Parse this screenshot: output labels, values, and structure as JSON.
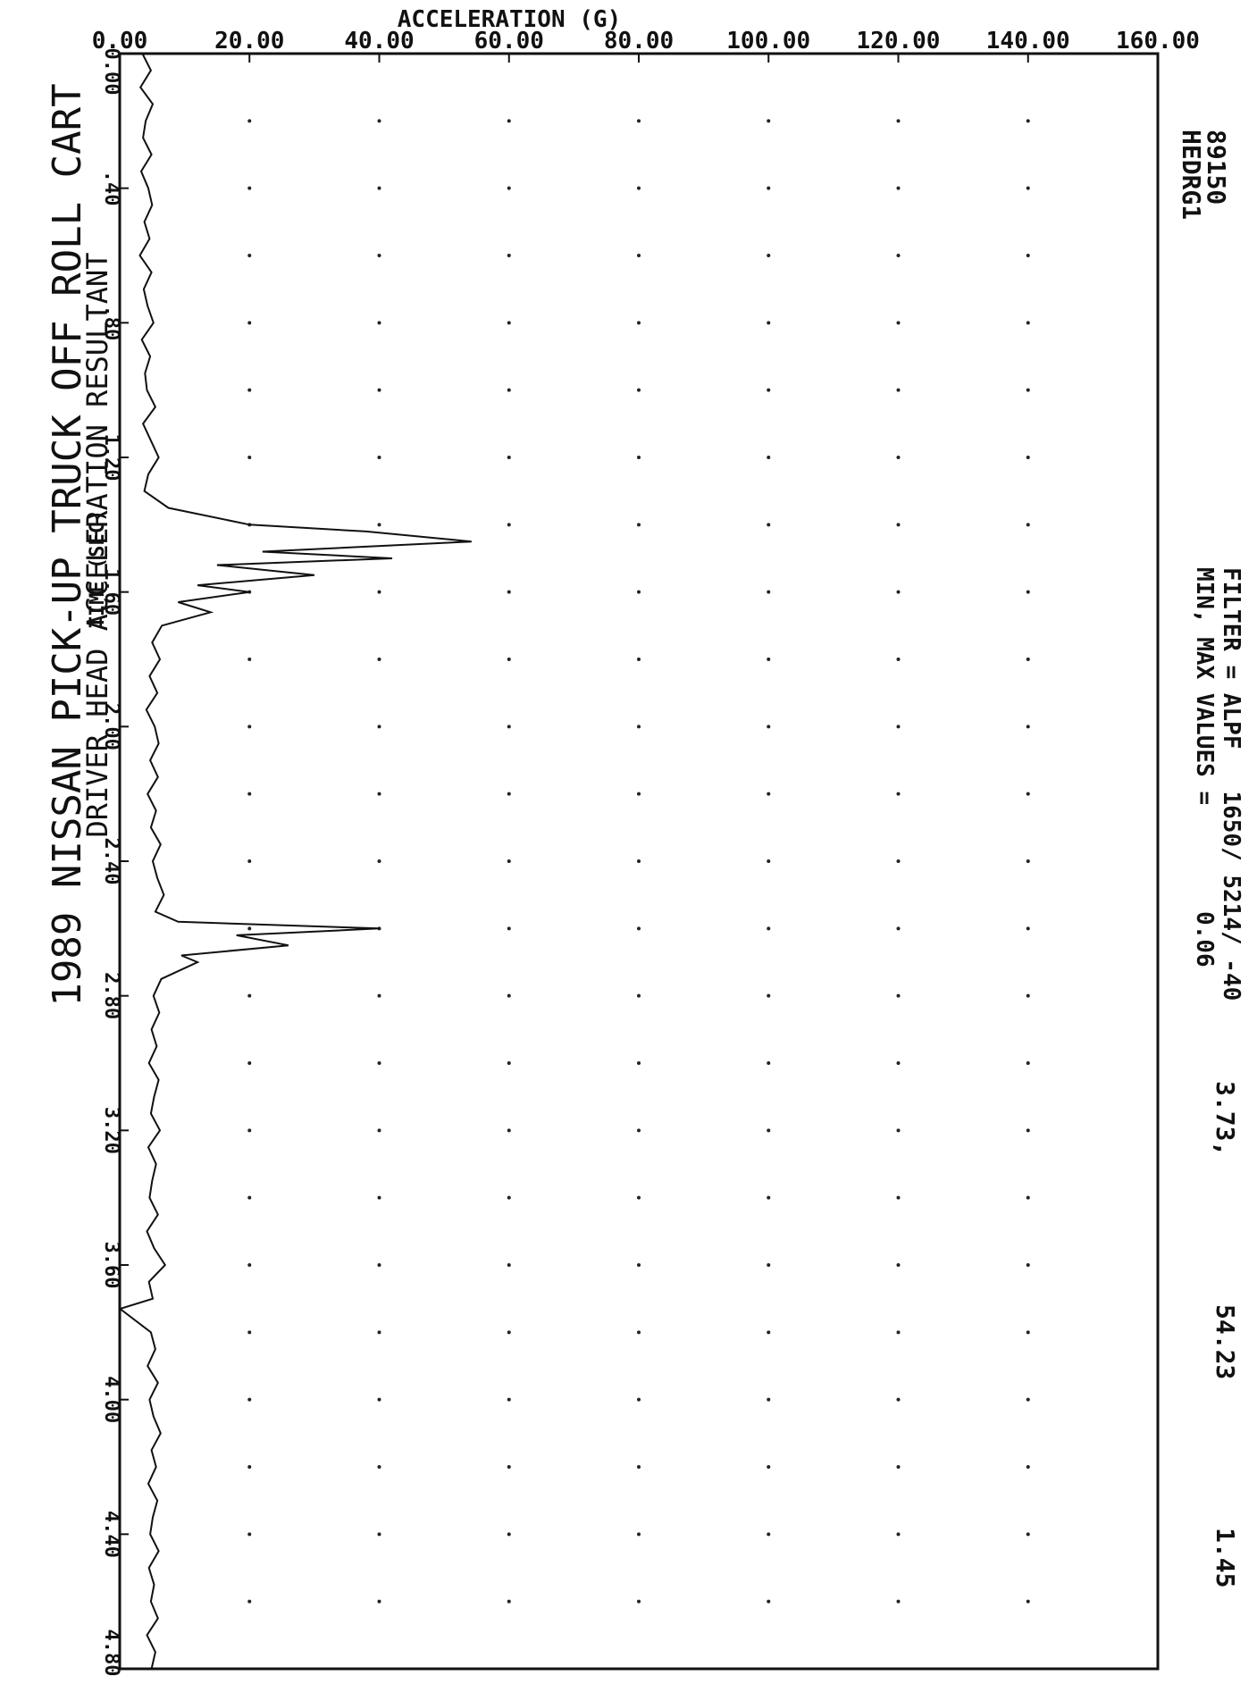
{
  "chart_data": {
    "type": "line",
    "title": "1989 NISSAN PICK-UP TRUCK OFF ROLL CART",
    "subtitle": "DRIVER HEAD ACCELERATION RESULTANT",
    "xlabel": "TIME (SEC)",
    "ylabel": "ACCELERATION (G)",
    "xlim": [
      0.0,
      4.8
    ],
    "ylim": [
      0.0,
      160.0
    ],
    "x_ticks": [
      "0.00",
      ".40",
      ".80",
      "1.20",
      "1.60",
      "2.00",
      "2.40",
      "2.80",
      "3.20",
      "3.60",
      "4.00",
      "4.40",
      "4.80"
    ],
    "y_ticks": [
      "0.00",
      "20.00",
      "40.00",
      "60.00",
      "80.00",
      "100.00",
      "120.00",
      "140.00",
      "160.00"
    ],
    "grid": true,
    "test_id": "89150",
    "channel": "HEDRG1",
    "filter_text": "FILTER = ALPF   1650/ 5214/ -40",
    "minmax_label": "MIN, MAX VALUES =",
    "min_value": "0.06",
    "min_time": "3.73,",
    "max_value": "54.23",
    "max_time": "1.45",
    "series": [
      {
        "values_x": [
          0.0,
          0.05,
          0.1,
          0.15,
          0.2,
          0.25,
          0.3,
          0.35,
          0.4,
          0.45,
          0.5,
          0.55,
          0.6,
          0.65,
          0.7,
          0.75,
          0.8,
          0.85,
          0.9,
          0.95,
          1.0,
          1.05,
          1.1,
          1.15,
          1.2,
          1.25,
          1.3,
          1.35,
          1.4,
          1.42,
          1.45,
          1.48,
          1.5,
          1.52,
          1.55,
          1.58,
          1.6,
          1.63,
          1.66,
          1.7,
          1.75,
          1.8,
          1.85,
          1.9,
          1.95,
          2.0,
          2.05,
          2.1,
          2.15,
          2.2,
          2.25,
          2.3,
          2.35,
          2.4,
          2.45,
          2.5,
          2.55,
          2.58,
          2.6,
          2.62,
          2.65,
          2.68,
          2.7,
          2.75,
          2.8,
          2.85,
          2.9,
          2.95,
          3.0,
          3.05,
          3.1,
          3.15,
          3.2,
          3.25,
          3.3,
          3.35,
          3.4,
          3.45,
          3.5,
          3.55,
          3.6,
          3.65,
          3.7,
          3.73,
          3.8,
          3.85,
          3.9,
          3.95,
          4.0,
          4.05,
          4.1,
          4.15,
          4.2,
          4.25,
          4.3,
          4.35,
          4.4,
          4.45,
          4.5,
          4.55,
          4.6,
          4.65,
          4.7,
          4.75,
          4.8
        ],
        "values_y": [
          3.5,
          4.8,
          3.2,
          5.1,
          4.0,
          3.6,
          4.9,
          3.3,
          4.4,
          5.0,
          3.8,
          4.6,
          3.1,
          4.9,
          3.7,
          4.3,
          5.2,
          3.4,
          4.7,
          3.9,
          4.2,
          5.5,
          3.6,
          4.8,
          6.0,
          4.4,
          3.8,
          7.5,
          20.0,
          38.0,
          54.23,
          22.0,
          42.0,
          15.0,
          30.0,
          12.0,
          20.0,
          9.0,
          14.0,
          6.5,
          5.0,
          6.2,
          4.6,
          5.8,
          4.1,
          5.4,
          6.0,
          4.7,
          5.9,
          4.3,
          5.6,
          4.8,
          6.3,
          5.1,
          5.8,
          6.8,
          5.5,
          9.0,
          40.0,
          18.0,
          26.0,
          9.5,
          12.0,
          6.4,
          5.2,
          6.1,
          4.9,
          5.7,
          4.5,
          6.0,
          5.3,
          4.8,
          6.2,
          4.4,
          5.6,
          5.0,
          4.6,
          5.9,
          4.2,
          5.3,
          7.0,
          4.5,
          5.1,
          0.06,
          4.8,
          5.5,
          4.3,
          5.9,
          4.6,
          5.2,
          6.3,
          4.9,
          5.6,
          4.4,
          5.8,
          5.1,
          4.7,
          6.0,
          4.5,
          5.3,
          4.8,
          5.9,
          4.2,
          5.5,
          4.9
        ]
      }
    ]
  }
}
